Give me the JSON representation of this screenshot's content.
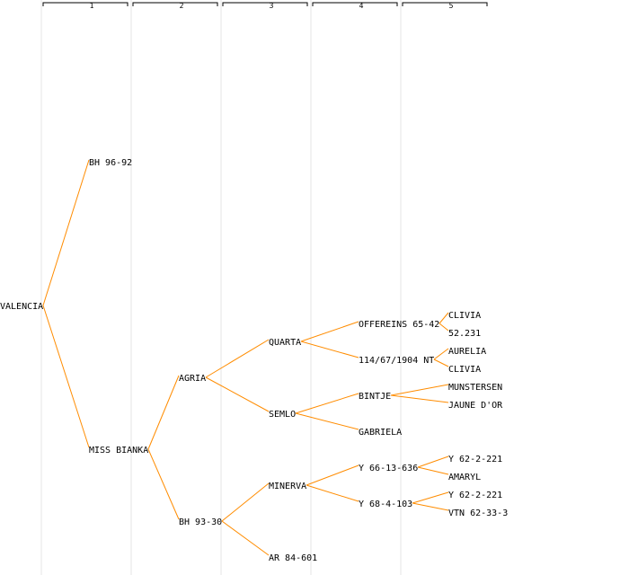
{
  "generations": [
    "1",
    "2",
    "3",
    "4",
    "5"
  ],
  "tree": {
    "id": "valencia",
    "label": "VALENCIA",
    "gen": 0,
    "children": [
      {
        "id": "bh-96-92",
        "label": "BH 96-92",
        "gen": 1
      },
      {
        "id": "miss-bianka",
        "label": "MISS BIANKA",
        "gen": 1,
        "children": [
          {
            "id": "agria",
            "label": "AGRIA",
            "gen": 2,
            "children": [
              {
                "id": "quarta",
                "label": "QUARTA",
                "gen": 3,
                "children": [
                  {
                    "id": "offereins",
                    "label": "OFFEREINS 65-42",
                    "gen": 4,
                    "children": [
                      {
                        "id": "clivia-1",
                        "label": "CLIVIA",
                        "gen": 5
                      },
                      {
                        "id": "52-231",
                        "label": "52.231",
                        "gen": 5
                      }
                    ]
                  },
                  {
                    "id": "114-67-1904",
                    "label": "114/67/1904 NT",
                    "gen": 4,
                    "children": [
                      {
                        "id": "aurelia",
                        "label": "AURELIA",
                        "gen": 5
                      },
                      {
                        "id": "clivia-2",
                        "label": "CLIVIA",
                        "gen": 5
                      }
                    ]
                  }
                ]
              },
              {
                "id": "semlo",
                "label": "SEMLO",
                "gen": 3,
                "children": [
                  {
                    "id": "bintje",
                    "label": "BINTJE",
                    "gen": 4,
                    "children": [
                      {
                        "id": "munstersen",
                        "label": "MUNSTERSEN",
                        "gen": 5
                      },
                      {
                        "id": "jaune-dor",
                        "label": "JAUNE D'OR",
                        "gen": 5
                      }
                    ]
                  },
                  {
                    "id": "gabriela",
                    "label": "GABRIELA",
                    "gen": 4
                  }
                ]
              }
            ]
          },
          {
            "id": "bh-93-30",
            "label": "BH 93-30",
            "gen": 2,
            "children": [
              {
                "id": "minerva",
                "label": "MINERVA",
                "gen": 3,
                "children": [
                  {
                    "id": "y-66-13-636",
                    "label": "Y 66-13-636",
                    "gen": 4,
                    "children": [
                      {
                        "id": "y-62-2-221-a",
                        "label": "Y 62-2-221",
                        "gen": 5
                      },
                      {
                        "id": "amaryl",
                        "label": "AMARYL",
                        "gen": 5
                      }
                    ]
                  },
                  {
                    "id": "y-68-4-103",
                    "label": "Y 68-4-103",
                    "gen": 4,
                    "children": [
                      {
                        "id": "y-62-2-221-b",
                        "label": "Y 62-2-221",
                        "gen": 5
                      },
                      {
                        "id": "vtn-62-33-3",
                        "label": "VTN 62-33-3",
                        "gen": 5
                      }
                    ]
                  }
                ]
              },
              {
                "id": "ar-84-601",
                "label": "AR 84-601",
                "gen": 3
              }
            ]
          }
        ]
      }
    ]
  }
}
